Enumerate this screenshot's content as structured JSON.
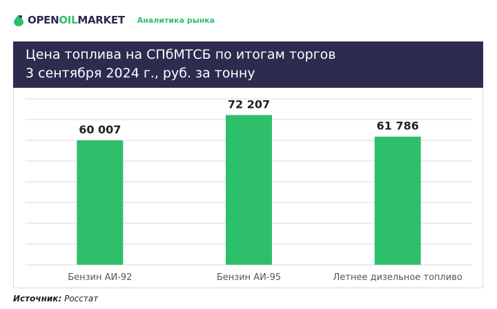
{
  "header": {
    "logo_part1": "OPEN",
    "logo_part2": "OIL",
    "logo_part3": "MARKET",
    "tagline": "Аналитика рынка"
  },
  "title": {
    "line1": "Цена топлива на СПбМТСБ по итогам торгов",
    "line2": "3 сентября 2024 г., руб. за тонну"
  },
  "chart_data": {
    "type": "bar",
    "categories": [
      "Бензин АИ-92",
      "Бензин АИ-95",
      "Летнее дизельное топливо"
    ],
    "values": [
      60007,
      72207,
      61786
    ],
    "value_labels": [
      "60 007",
      "72 207",
      "61 786"
    ],
    "ylim": [
      0,
      80000
    ],
    "grid": true,
    "bar_color": "#2ebf6b"
  },
  "footer": {
    "source_label": "Источник:",
    "source_value": "Росстат"
  },
  "colors": {
    "brand_dark": "#2d2b4e",
    "brand_green": "#2bbf6a"
  }
}
